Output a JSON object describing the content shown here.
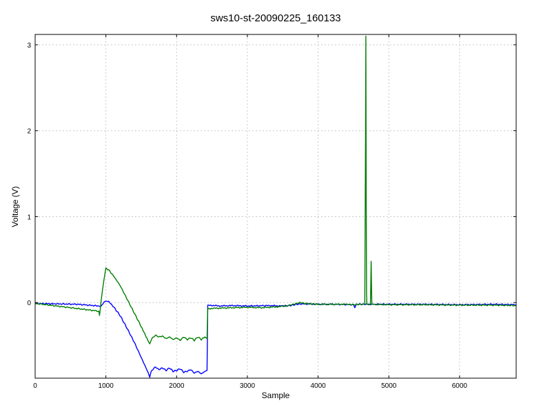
{
  "chart_data": {
    "type": "line",
    "title": "sws10-st-20090225_160133",
    "xlabel": "Sample",
    "ylabel": "Voltage (V)",
    "xlim": [
      0,
      6800
    ],
    "ylim": [
      -0.88,
      3.12
    ],
    "x_ticks": [
      0,
      1000,
      2000,
      3000,
      4000,
      5000,
      6000
    ],
    "y_ticks": [
      0,
      1,
      2,
      3
    ],
    "grid": true,
    "legend": "none",
    "series": [
      {
        "color": "#0000ff",
        "x": [
          0,
          300,
          600,
          900,
          920,
          960,
          1000,
          1040,
          1100,
          1200,
          1300,
          1400,
          1500,
          1600,
          1620,
          1640,
          1660,
          1700,
          1750,
          1800,
          1850,
          1900,
          1950,
          2000,
          2050,
          2100,
          2150,
          2200,
          2250,
          2300,
          2350,
          2400,
          2430,
          2440,
          2460,
          2600,
          2800,
          3000,
          3300,
          3500,
          3600,
          3700,
          3800,
          4000,
          4200,
          4500,
          4520,
          4540,
          4700,
          5000,
          5500,
          6000,
          6500,
          6800
        ],
        "y": [
          -0.01,
          -0.015,
          -0.02,
          -0.04,
          -0.05,
          -0.01,
          0.02,
          0.01,
          -0.04,
          -0.15,
          -0.3,
          -0.46,
          -0.64,
          -0.82,
          -0.87,
          -0.8,
          -0.78,
          -0.75,
          -0.78,
          -0.76,
          -0.79,
          -0.76,
          -0.8,
          -0.79,
          -0.77,
          -0.81,
          -0.8,
          -0.78,
          -0.82,
          -0.8,
          -0.83,
          -0.8,
          -0.79,
          -0.03,
          -0.03,
          -0.04,
          -0.035,
          -0.04,
          -0.035,
          -0.04,
          -0.035,
          -0.02,
          -0.015,
          -0.02,
          -0.02,
          -0.025,
          -0.06,
          -0.02,
          -0.02,
          -0.02,
          -0.02,
          -0.025,
          -0.02,
          -0.025
        ]
      },
      {
        "color": "#007d00",
        "x": [
          0,
          300,
          600,
          900,
          910,
          920,
          930,
          960,
          1000,
          1040,
          1100,
          1200,
          1300,
          1400,
          1500,
          1580,
          1620,
          1650,
          1700,
          1750,
          1800,
          1850,
          1900,
          1950,
          2000,
          2050,
          2100,
          2150,
          2200,
          2250,
          2300,
          2350,
          2400,
          2430,
          2440,
          2460,
          2600,
          2800,
          3000,
          3200,
          3400,
          3550,
          3650,
          3700,
          3750,
          3800,
          3900,
          4000,
          4200,
          4400,
          4500,
          4600,
          4660,
          4670,
          4675,
          4680,
          4685,
          4690,
          4700,
          4740,
          4750,
          4755,
          4760,
          4770,
          4800,
          5000,
          5500,
          6000,
          6500,
          6800
        ],
        "y": [
          -0.01,
          -0.04,
          -0.07,
          -0.1,
          -0.15,
          -0.08,
          0.0,
          0.2,
          0.4,
          0.38,
          0.32,
          0.2,
          0.04,
          -0.12,
          -0.28,
          -0.42,
          -0.48,
          -0.42,
          -0.38,
          -0.4,
          -0.39,
          -0.42,
          -0.4,
          -0.43,
          -0.41,
          -0.44,
          -0.4,
          -0.43,
          -0.41,
          -0.44,
          -0.4,
          -0.43,
          -0.4,
          -0.42,
          -0.07,
          -0.07,
          -0.065,
          -0.06,
          -0.055,
          -0.06,
          -0.05,
          -0.04,
          -0.02,
          -0.01,
          0.0,
          -0.01,
          -0.015,
          -0.02,
          -0.02,
          -0.02,
          -0.025,
          -0.02,
          -0.02,
          1.8,
          3.1,
          1.2,
          0.1,
          -0.02,
          -0.02,
          -0.02,
          0.48,
          0.2,
          -0.02,
          -0.02,
          -0.02,
          -0.025,
          -0.025,
          -0.03,
          -0.03,
          -0.035
        ]
      }
    ]
  }
}
